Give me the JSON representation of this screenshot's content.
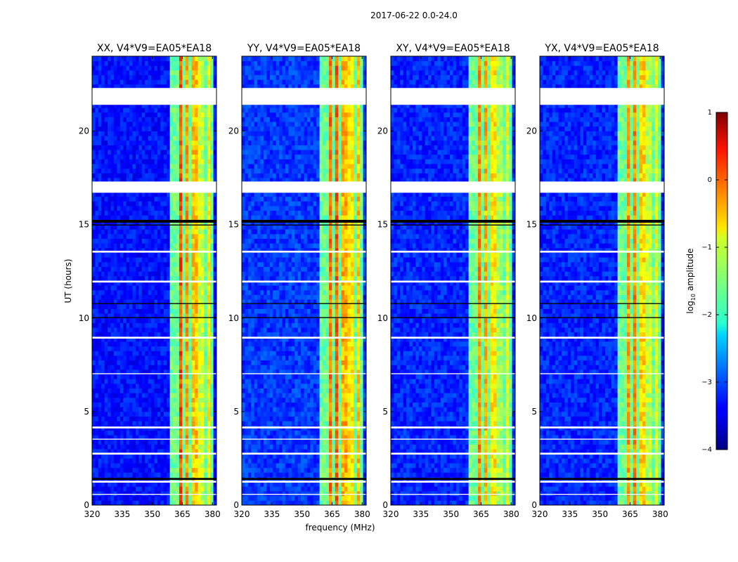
{
  "figure": {
    "suptitle": "2017-06-22 0.0-24.0",
    "ylabel": "UT (hours)",
    "xlabel": "frequency (MHz)",
    "colorbar": {
      "label_prefix": "log",
      "label_sub": "10",
      "label_suffix": " amplitude",
      "range": [
        -4,
        1
      ],
      "ticks": [
        {
          "value": 1,
          "label": "1"
        },
        {
          "value": 0,
          "label": "0"
        },
        {
          "value": -1,
          "label": "−1"
        },
        {
          "value": -2,
          "label": "−2"
        },
        {
          "value": -3,
          "label": "−3"
        },
        {
          "value": -4,
          "label": "−4"
        }
      ]
    }
  },
  "chart_data": [
    {
      "type": "heatmap",
      "title": "XX, V4*V9=EA05*EA18",
      "xlim": [
        320,
        382
      ],
      "ylim": [
        0,
        24
      ],
      "xticks": [
        {
          "value": 320,
          "label": "320"
        },
        {
          "value": 335,
          "label": "335"
        },
        {
          "value": 350,
          "label": "350"
        },
        {
          "value": 365,
          "label": "365"
        },
        {
          "value": 380,
          "label": "380"
        }
      ],
      "yticks": [
        {
          "value": 0,
          "label": "0"
        },
        {
          "value": 5,
          "label": "5"
        },
        {
          "value": 10,
          "label": "10"
        },
        {
          "value": 15,
          "label": "15"
        },
        {
          "value": 20,
          "label": "20"
        }
      ],
      "colormap": "jet",
      "color_range": [
        -4,
        1
      ],
      "background_level": -3.3,
      "rfi_band_mhz": [
        359.5,
        381
      ],
      "rfi_channels_mhz": [
        {
          "center": 364,
          "level": 0
        },
        {
          "center": 367.5,
          "level": -0.4
        },
        {
          "center": 371,
          "level": -0.6
        },
        {
          "center": 374.5,
          "level": -1.1
        },
        {
          "center": 378,
          "level": -0.9
        }
      ]
    },
    {
      "type": "heatmap",
      "title": "YY, V4*V9=EA05*EA18",
      "xlim": [
        320,
        382
      ],
      "ylim": [
        0,
        24
      ],
      "xticks": [
        {
          "value": 320,
          "label": "320"
        },
        {
          "value": 335,
          "label": "335"
        },
        {
          "value": 350,
          "label": "350"
        },
        {
          "value": 365,
          "label": "365"
        },
        {
          "value": 380,
          "label": "380"
        }
      ],
      "yticks": [
        {
          "value": 0,
          "label": "0"
        },
        {
          "value": 5,
          "label": "5"
        },
        {
          "value": 10,
          "label": "10"
        },
        {
          "value": 15,
          "label": "15"
        },
        {
          "value": 20,
          "label": "20"
        }
      ],
      "colormap": "jet",
      "color_range": [
        -4,
        1
      ],
      "background_level": -3.1,
      "rfi_band_mhz": [
        359.5,
        381
      ],
      "rfi_channels_mhz": [
        {
          "center": 364,
          "level": -0.2
        },
        {
          "center": 367.5,
          "level": -0.1
        },
        {
          "center": 371,
          "level": -0.5
        },
        {
          "center": 374.5,
          "level": -0.8
        },
        {
          "center": 378,
          "level": -0.6
        }
      ]
    },
    {
      "type": "heatmap",
      "title": "XY, V4*V9=EA05*EA18",
      "xlim": [
        320,
        382
      ],
      "ylim": [
        0,
        24
      ],
      "xticks": [
        {
          "value": 320,
          "label": "320"
        },
        {
          "value": 335,
          "label": "335"
        },
        {
          "value": 350,
          "label": "350"
        },
        {
          "value": 365,
          "label": "365"
        },
        {
          "value": 380,
          "label": "380"
        }
      ],
      "yticks": [
        {
          "value": 0,
          "label": "0"
        },
        {
          "value": 5,
          "label": "5"
        },
        {
          "value": 10,
          "label": "10"
        },
        {
          "value": 15,
          "label": "15"
        },
        {
          "value": 20,
          "label": "20"
        }
      ],
      "colormap": "jet",
      "color_range": [
        -4,
        1
      ],
      "background_level": -3.2,
      "rfi_band_mhz": [
        359.5,
        381
      ],
      "rfi_channels_mhz": [
        {
          "center": 364,
          "level": -0.3
        },
        {
          "center": 367.5,
          "level": -0.5
        },
        {
          "center": 371,
          "level": -0.8
        },
        {
          "center": 374.5,
          "level": -1.3
        },
        {
          "center": 378,
          "level": -1.0
        }
      ]
    },
    {
      "type": "heatmap",
      "title": "YX, V4*V9=EA05*EA18",
      "xlim": [
        320,
        382
      ],
      "ylim": [
        0,
        24
      ],
      "xticks": [
        {
          "value": 320,
          "label": "320"
        },
        {
          "value": 335,
          "label": "335"
        },
        {
          "value": 350,
          "label": "350"
        },
        {
          "value": 365,
          "label": "365"
        },
        {
          "value": 380,
          "label": "380"
        }
      ],
      "yticks": [
        {
          "value": 0,
          "label": "0"
        },
        {
          "value": 5,
          "label": "5"
        },
        {
          "value": 10,
          "label": "10"
        },
        {
          "value": 15,
          "label": "15"
        },
        {
          "value": 20,
          "label": "20"
        }
      ],
      "colormap": "jet",
      "color_range": [
        -4,
        1
      ],
      "background_level": -3.2,
      "rfi_band_mhz": [
        359.5,
        381
      ],
      "rfi_channels_mhz": [
        {
          "center": 364,
          "level": -0.4
        },
        {
          "center": 367.5,
          "level": -0.3
        },
        {
          "center": 371,
          "level": -0.7
        },
        {
          "center": 374.5,
          "level": -1.2
        },
        {
          "center": 378,
          "level": -1.0
        }
      ]
    }
  ],
  "flags": {
    "blank_ut_hours": [
      [
        21.4,
        22.3
      ],
      [
        16.7,
        17.3
      ],
      [
        13.5,
        13.6
      ],
      [
        11.9,
        12.0
      ],
      [
        8.9,
        9.0
      ],
      [
        7.0,
        7.05
      ],
      [
        4.1,
        4.2
      ],
      [
        3.5,
        3.55
      ],
      [
        2.7,
        2.8
      ],
      [
        1.2,
        1.3
      ],
      [
        0.55,
        0.6
      ]
    ],
    "gap_ut_hours": [
      [
        15.1,
        15.25
      ],
      [
        14.95,
        15.0
      ],
      [
        1.35,
        1.45
      ],
      [
        10.0,
        10.05
      ],
      [
        10.75,
        10.8
      ]
    ]
  }
}
